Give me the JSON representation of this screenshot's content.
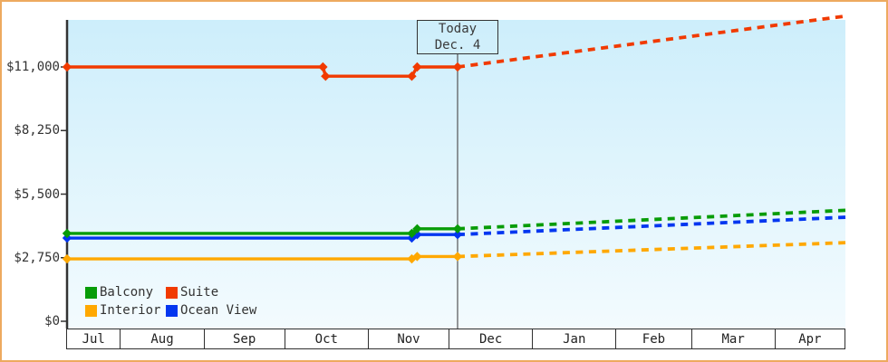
{
  "today_box": {
    "line1": "Today",
    "line2": "Dec. 4"
  },
  "colors": {
    "frame_border": "#edaa5f",
    "axis": "#333333",
    "text": "#333333",
    "today_line": "#555555",
    "plot_bg_top": "#cdeefb",
    "plot_bg_bottom": "#f3fbfe"
  },
  "chart_data": {
    "type": "line",
    "title": "",
    "xlabel": "",
    "ylabel": "",
    "grid": "off",
    "x_axis": {
      "tick_labels": [
        "Jul",
        "Aug",
        "Sep",
        "Oct",
        "Nov",
        "Dec",
        "Jan",
        "Feb",
        "Mar",
        "Apr"
      ],
      "start_date": "Jul 12",
      "end_date": "Apr 27",
      "today_date": "Dec 4"
    },
    "y_axis": {
      "tick_labels": [
        "$0",
        "$2,750",
        "$5,500",
        "$8,250",
        "$11,000"
      ],
      "tick_values": [
        0,
        2750,
        5500,
        8250,
        11000
      ],
      "unit": "USD",
      "ylim": [
        0,
        13100
      ]
    },
    "legend": {
      "position": "bottom-left",
      "rows": [
        [
          "Balcony",
          "Suite"
        ],
        [
          "Interior",
          "Ocean View"
        ]
      ]
    },
    "series": [
      {
        "name": "Suite",
        "color": "#f13a00",
        "history": [
          [
            "Jul 12",
            11000
          ],
          [
            "Oct 15",
            11000
          ],
          [
            "Oct 16",
            10600
          ],
          [
            "Nov 17",
            10600
          ],
          [
            "Nov 19",
            11000
          ],
          [
            "Dec 4",
            11000
          ]
        ],
        "forecast": [
          [
            "Dec 4",
            11000
          ],
          [
            "Apr 27",
            13200
          ]
        ]
      },
      {
        "name": "Interior",
        "color": "#ffa800",
        "history": [
          [
            "Jul 12",
            2700
          ],
          [
            "Nov 17",
            2700
          ],
          [
            "Nov 19",
            2800
          ],
          [
            "Dec 4",
            2800
          ]
        ],
        "forecast": [
          [
            "Dec 4",
            2800
          ],
          [
            "Apr 27",
            3400
          ]
        ]
      },
      {
        "name": "Ocean View",
        "color": "#0336f0",
        "history": [
          [
            "Jul 12",
            3600
          ],
          [
            "Nov 17",
            3600
          ],
          [
            "Nov 19",
            3750
          ],
          [
            "Dec 4",
            3750
          ]
        ],
        "forecast": [
          [
            "Dec 4",
            3750
          ],
          [
            "Apr 27",
            4500
          ]
        ]
      },
      {
        "name": "Balcony",
        "color": "#089c08",
        "history": [
          [
            "Jul 12",
            3800
          ],
          [
            "Nov 17",
            3800
          ],
          [
            "Nov 19",
            4000
          ],
          [
            "Dec 4",
            4000
          ]
        ],
        "forecast": [
          [
            "Dec 4",
            4000
          ],
          [
            "Apr 27",
            4800
          ]
        ]
      }
    ]
  }
}
